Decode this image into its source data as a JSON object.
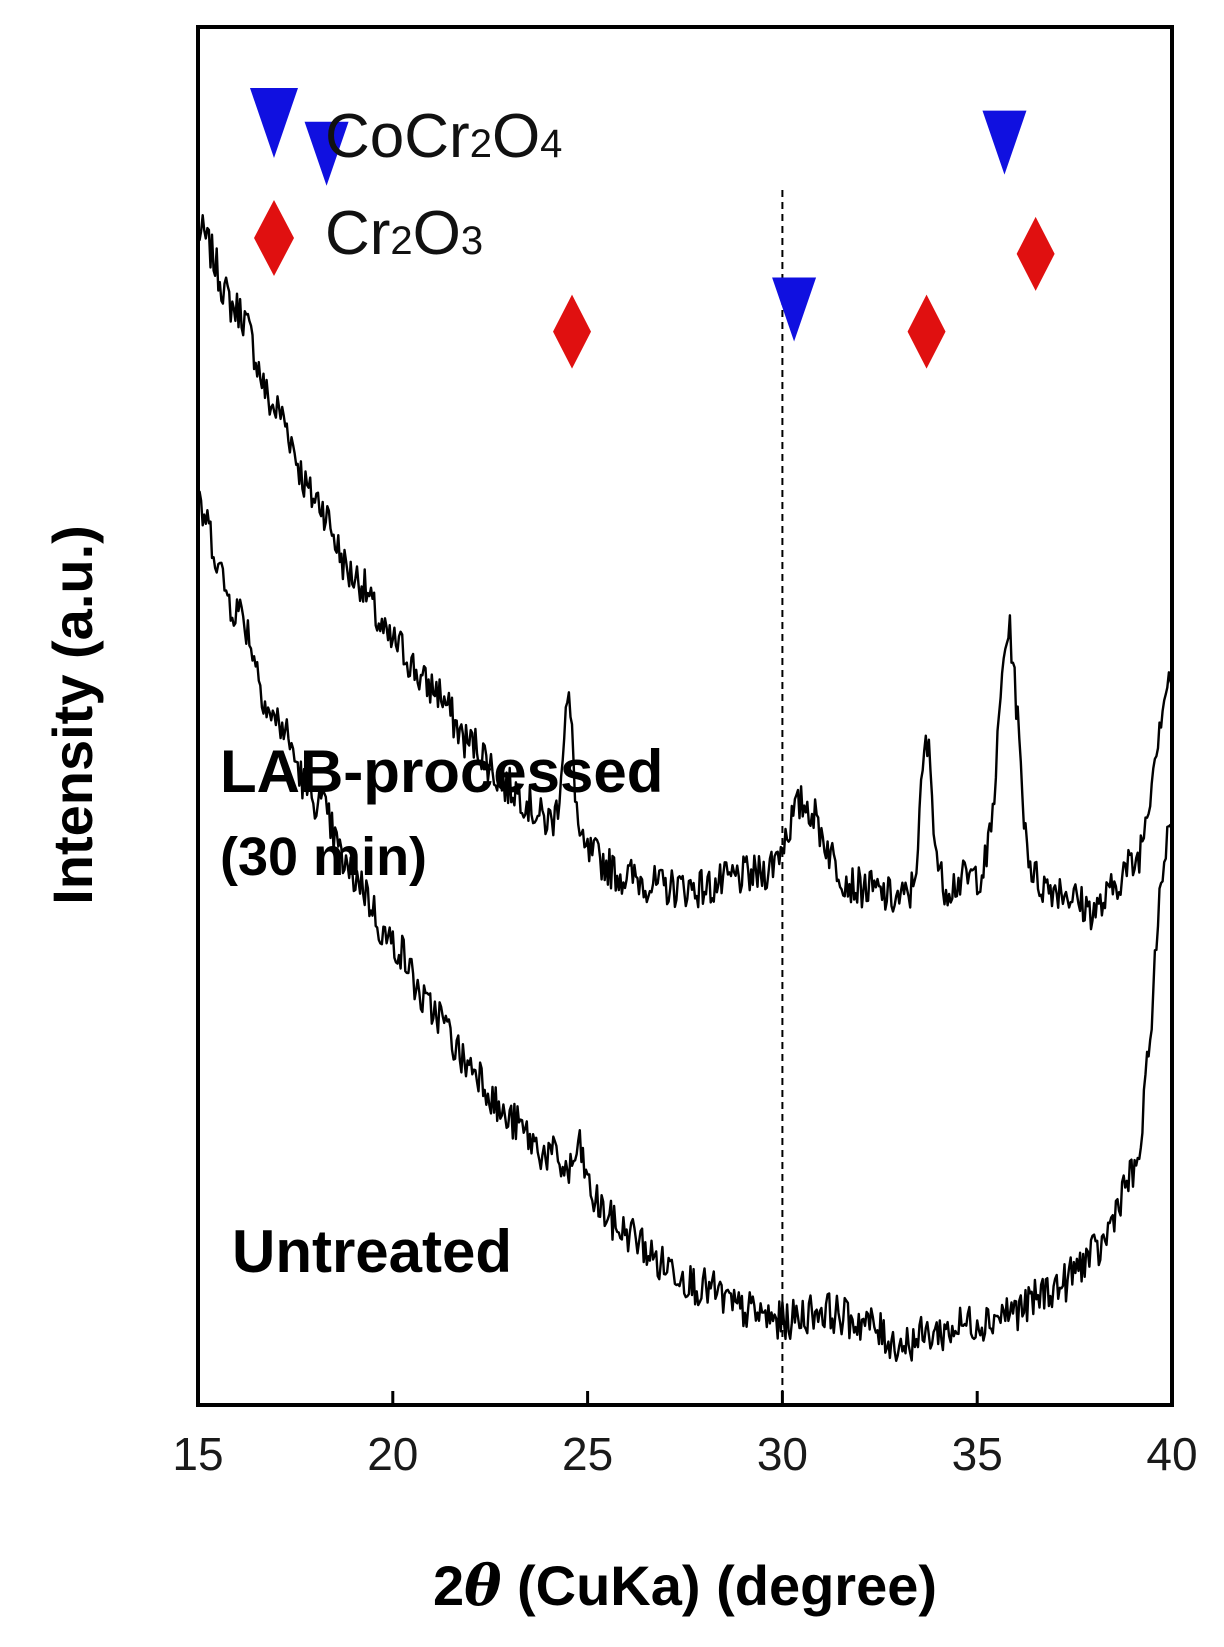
{
  "chart_data": {
    "type": "line",
    "xlabel": {
      "prefix": "2",
      "theta": "θ",
      "rest": " (CuKa) (degree)"
    },
    "ylabel": "Intensity (a.u.)",
    "xlim": [
      15,
      40
    ],
    "xticks": [
      15,
      20,
      25,
      30,
      35,
      40
    ],
    "reference_line_x": 30,
    "grid": false,
    "legend_position": "top-left",
    "legend": [
      {
        "marker": "down-triangle",
        "color": "#1010e0",
        "parts": [
          {
            "t": "CoCr",
            "sub": false
          },
          {
            "t": "2",
            "sub": true
          },
          {
            "t": "O",
            "sub": false
          },
          {
            "t": "4",
            "sub": true
          }
        ]
      },
      {
        "marker": "diamond",
        "color": "#e01010",
        "parts": [
          {
            "t": "Cr",
            "sub": false
          },
          {
            "t": "2",
            "sub": true
          },
          {
            "t": "O",
            "sub": false
          },
          {
            "t": "3",
            "sub": true
          }
        ]
      }
    ],
    "series": [
      {
        "name": "LAB-processed (30 min)",
        "label_lines": [
          "LAB-processed",
          "(30 min)"
        ],
        "points": [
          [
            15.0,
            0.95
          ],
          [
            16.0,
            0.88
          ],
          [
            17.0,
            0.79
          ],
          [
            18.0,
            0.71
          ],
          [
            19.0,
            0.64
          ],
          [
            20.0,
            0.58
          ],
          [
            21.0,
            0.54
          ],
          [
            22.0,
            0.49
          ],
          [
            23.0,
            0.45
          ],
          [
            24.0,
            0.42
          ],
          [
            25.0,
            0.39
          ],
          [
            26.0,
            0.37
          ],
          [
            27.0,
            0.36
          ],
          [
            28.0,
            0.36
          ],
          [
            29.0,
            0.37
          ],
          [
            30.0,
            0.37
          ],
          [
            31.0,
            0.38
          ],
          [
            32.0,
            0.36
          ],
          [
            33.0,
            0.35
          ],
          [
            34.0,
            0.36
          ],
          [
            35.0,
            0.37
          ],
          [
            36.0,
            0.37
          ],
          [
            37.0,
            0.36
          ],
          [
            38.0,
            0.34
          ],
          [
            39.0,
            0.38
          ],
          [
            40.0,
            0.55
          ]
        ],
        "peaks": [
          {
            "x": 24.5,
            "height": 0.12,
            "width": 0.2
          },
          {
            "x": 30.5,
            "height": 0.06,
            "width": 0.6
          },
          {
            "x": 33.7,
            "height": 0.13,
            "width": 0.22
          },
          {
            "x": 35.8,
            "height": 0.22,
            "width": 0.35
          }
        ],
        "noise": 0.018
      },
      {
        "name": "Untreated",
        "label_lines": [
          "Untreated"
        ],
        "points": [
          [
            15.0,
            0.7
          ],
          [
            16.0,
            0.61
          ],
          [
            17.0,
            0.51
          ],
          [
            18.0,
            0.44
          ],
          [
            19.0,
            0.37
          ],
          [
            20.0,
            0.31
          ],
          [
            21.0,
            0.25
          ],
          [
            22.0,
            0.2
          ],
          [
            23.0,
            0.15
          ],
          [
            24.0,
            0.12
          ],
          [
            25.0,
            0.08
          ],
          [
            26.0,
            0.05
          ],
          [
            27.0,
            0.02
          ],
          [
            28.0,
            0.0
          ],
          [
            29.0,
            -0.02
          ],
          [
            30.0,
            -0.03
          ],
          [
            31.0,
            -0.02
          ],
          [
            32.0,
            -0.03
          ],
          [
            33.0,
            -0.05
          ],
          [
            34.0,
            -0.04
          ],
          [
            35.0,
            -0.03
          ],
          [
            36.0,
            -0.02
          ],
          [
            37.0,
            0.0
          ],
          [
            38.0,
            0.03
          ],
          [
            39.0,
            0.1
          ],
          [
            40.0,
            0.42
          ]
        ],
        "peaks": [
          {
            "x": 24.8,
            "height": 0.04,
            "width": 0.2
          }
        ],
        "noise": 0.018
      }
    ],
    "markers": [
      {
        "phase": "CoCr2O4",
        "x": 18.3,
        "y": 1.02
      },
      {
        "phase": "Cr2O3",
        "x": 24.6,
        "y": 0.86
      },
      {
        "phase": "CoCr2O4",
        "x": 30.3,
        "y": 0.88
      },
      {
        "phase": "Cr2O3",
        "x": 33.7,
        "y": 0.86
      },
      {
        "phase": "CoCr2O4",
        "x": 35.7,
        "y": 1.03
      },
      {
        "phase": "Cr2O3",
        "x": 36.5,
        "y": 0.93
      }
    ]
  }
}
